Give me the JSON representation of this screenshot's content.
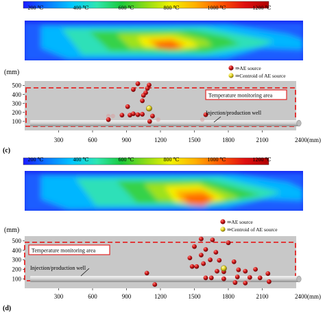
{
  "colorbar": {
    "labels": [
      "200 ℃",
      "400 ℃",
      "600 ℃",
      "800 ℃",
      "1000 ℃",
      "1200 ℃"
    ],
    "colors": [
      "#1a1aff",
      "#0a7bff",
      "#00c8ff",
      "#2ee6b0",
      "#19c93a",
      "#8edc16",
      "#f2f200",
      "#ffb000",
      "#ff5a00",
      "#e01010",
      "#b00000"
    ]
  },
  "colors": {
    "panel_bg": "#c8c8c8",
    "dash_box": "#e32626",
    "ae_source": "#c0161a",
    "centroid": "#e3d72a",
    "well": "#d8d8d8"
  },
  "legend": {
    "ae_source": "⇒AE source",
    "centroid": "⇒Centroid of AE source"
  },
  "labels": {
    "temperature_area": "Temperature monitoring area",
    "well": "Injection/production well"
  },
  "axes": {
    "y_unit": "(mm)",
    "y_ticks": [
      "500",
      "400",
      "300",
      "200",
      "100"
    ],
    "x_ticks": [
      "300",
      "600",
      "900",
      "1200",
      "1500",
      "1800",
      "2100"
    ],
    "x_last": "2400(mm)"
  },
  "panels": [
    {
      "tag": "(c)",
      "ae_points": [
        [
          1000,
          520
        ],
        [
          960,
          455
        ],
        [
          1085,
          468
        ],
        [
          1100,
          505
        ],
        [
          1070,
          420
        ],
        [
          1050,
          390
        ],
        [
          1040,
          330
        ],
        [
          1095,
          240
        ],
        [
          910,
          265
        ],
        [
          960,
          185
        ],
        [
          1000,
          175
        ],
        [
          930,
          170
        ],
        [
          1040,
          180
        ],
        [
          1130,
          160
        ],
        [
          860,
          170
        ],
        [
          740,
          120
        ],
        [
          1105,
          100
        ],
        [
          1600,
          175
        ]
      ],
      "faint_points": [
        [
          740,
          160
        ],
        [
          780,
          160
        ],
        [
          1180,
          120
        ],
        [
          1570,
          120
        ]
      ],
      "centroid": [
        1100,
        245
      ]
    },
    {
      "tag": "(d)",
      "ae_points": [
        [
          1560,
          520
        ],
        [
          1660,
          510
        ],
        [
          1800,
          480
        ],
        [
          1500,
          440
        ],
        [
          1600,
          410
        ],
        [
          1690,
          380
        ],
        [
          1560,
          350
        ],
        [
          1460,
          320
        ],
        [
          1640,
          300
        ],
        [
          1720,
          295
        ],
        [
          1850,
          280
        ],
        [
          1520,
          230
        ],
        [
          1580,
          260
        ],
        [
          1480,
          230
        ],
        [
          1700,
          180
        ],
        [
          1760,
          175
        ],
        [
          1890,
          195
        ],
        [
          1950,
          180
        ],
        [
          2040,
          200
        ],
        [
          1650,
          110
        ],
        [
          1760,
          100
        ],
        [
          1600,
          110
        ],
        [
          1880,
          120
        ],
        [
          1990,
          115
        ],
        [
          2080,
          110
        ],
        [
          2150,
          155
        ],
        [
          1860,
          60
        ],
        [
          1950,
          55
        ],
        [
          2160,
          70
        ],
        [
          1080,
          160
        ],
        [
          1150,
          40
        ]
      ],
      "faint_points": [
        [
          1980,
          85
        ]
      ],
      "centroid": [
        1760,
        210
      ]
    }
  ]
}
